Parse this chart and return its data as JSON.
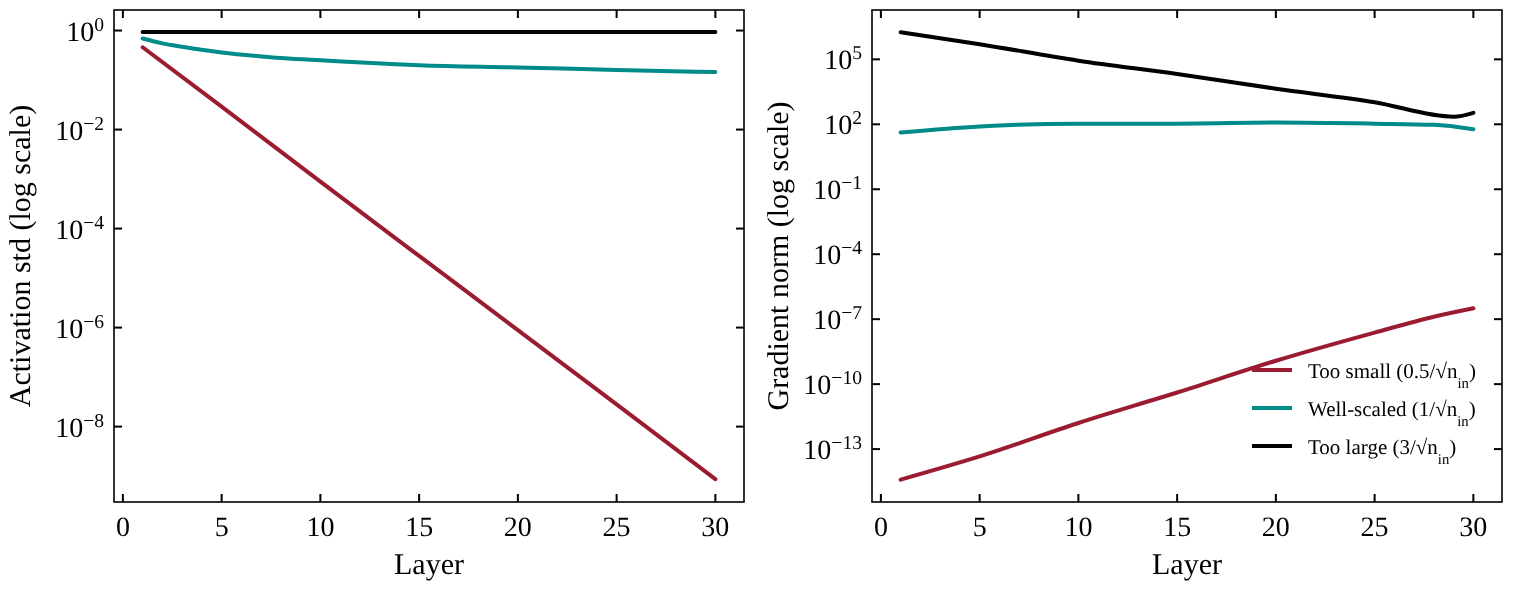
{
  "chart_data": [
    {
      "type": "line",
      "xlabel": "Layer",
      "ylabel": "Activation std (log scale)",
      "log": "y",
      "xlim": [
        -0.45,
        31.45
      ],
      "xticks": [
        0,
        5,
        10,
        15,
        20,
        25,
        30
      ],
      "ylim": [
        3e-10,
        2.6
      ],
      "yticks": [
        {
          "value": 1,
          "label": "10$^{0}$"
        },
        {
          "value": 0.01,
          "label": "10$^{−2}$"
        },
        {
          "value": 0.0001,
          "label": "10$^{−4}$"
        },
        {
          "value": 1e-06,
          "label": "10$^{−6}$"
        },
        {
          "value": 1e-08,
          "label": "10$^{−8}$"
        }
      ],
      "series": [
        {
          "color": "#9b1b30",
          "x": [
            1,
            5,
            10,
            15,
            20,
            25,
            30
          ],
          "values": [
            0.46,
            0.029,
            0.00089,
            2.8e-05,
            8.9e-07,
            2.8e-08,
            8.7e-10
          ]
        },
        {
          "color": "#008b8b",
          "x": [
            1,
            2,
            3,
            5,
            7,
            10,
            15,
            20,
            25,
            30
          ],
          "values": [
            0.69,
            0.55,
            0.47,
            0.36,
            0.3,
            0.25,
            0.2,
            0.18,
            0.16,
            0.145
          ]
        },
        {
          "color": "#000000",
          "x": [
            1,
            30
          ],
          "values": [
            0.93,
            0.93
          ]
        }
      ]
    },
    {
      "type": "line",
      "xlabel": "Layer",
      "ylabel": "Gradient norm (log scale)",
      "log": "y",
      "legend": "bottom right",
      "xlim": [
        -0.45,
        31.45
      ],
      "xticks": [
        0,
        5,
        10,
        15,
        20,
        25,
        30
      ],
      "ylim": [
        3.6e-16,
        19000000.0
      ],
      "yticks": [
        {
          "value": 100000,
          "label": "10$^{5}$"
        },
        {
          "value": 100,
          "label": "10$^{2}$"
        },
        {
          "value": 0.1,
          "label": "10$^{−1}$"
        },
        {
          "value": 0.0001,
          "label": "10$^{−4}$"
        },
        {
          "value": 1e-07,
          "label": "10$^{−7}$"
        },
        {
          "value": 1e-10,
          "label": "10$^{−10}$"
        },
        {
          "value": 1e-13,
          "label": "10$^{−13}$"
        }
      ],
      "series": [
        {
          "name": "Too small (0.5/√n$_{in}$)",
          "color": "#9b1b30",
          "x": [
            1,
            5,
            10,
            15,
            20,
            25,
            28,
            30
          ],
          "values": [
            3.9e-15,
            4.6e-14,
            1.6e-12,
            4.1e-11,
            1.2e-09,
            2.4e-08,
            1.3e-07,
            3.2e-07
          ]
        },
        {
          "name": "Well-scaled (1/√n$_{in}$)",
          "color": "#008b8b",
          "x": [
            1,
            5,
            10,
            15,
            20,
            25,
            28,
            30
          ],
          "values": [
            42,
            80,
            107,
            107,
            120,
            107,
            95,
            59
          ]
        },
        {
          "name": "Too large (3/√n$_{in}$)",
          "color": "#000000",
          "x": [
            1,
            5,
            10,
            15,
            20,
            25,
            29,
            30
          ],
          "values": [
            1800000,
            500000,
            87000,
            21000,
            4400,
            1050,
            224,
            340
          ]
        }
      ]
    }
  ]
}
